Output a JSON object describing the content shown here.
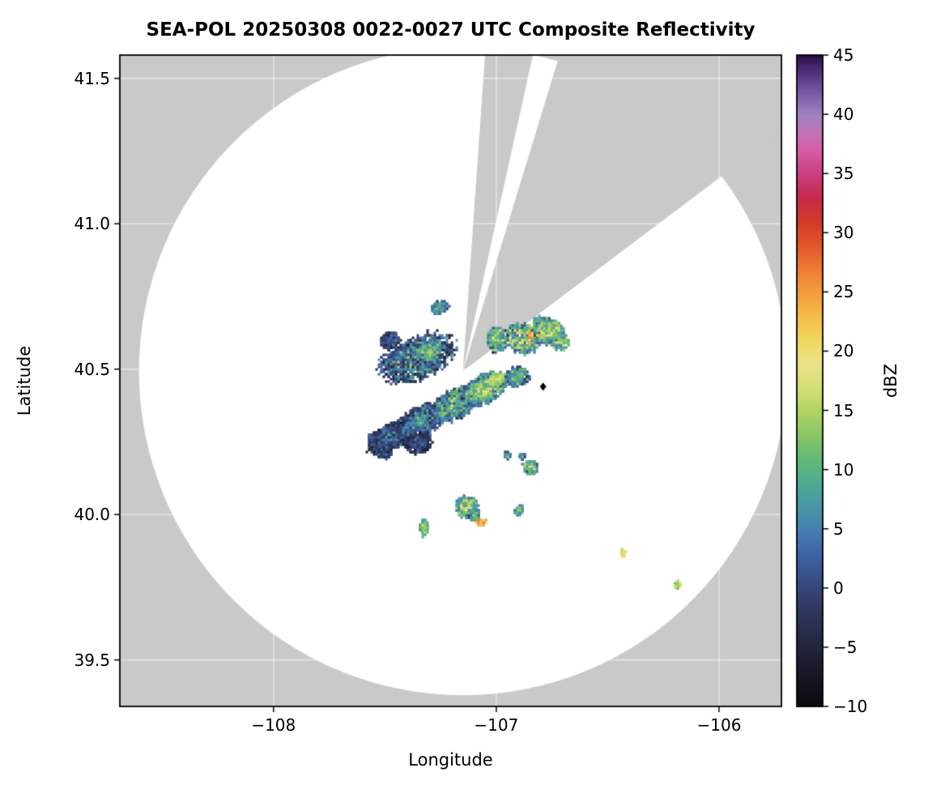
{
  "chart_data": {
    "type": "heatmap",
    "title": "SEA-POL 20250308 0022-0027 UTC Composite Reflectivity",
    "xlabel": "Longitude",
    "ylabel": "Latitude",
    "axes": {
      "xlim": [
        -108.69,
        -105.72
      ],
      "ylim": [
        39.34,
        41.58
      ],
      "xticks": [
        -108,
        -107,
        -106
      ],
      "xtick_labels": [
        "−108",
        "−107",
        "−106"
      ],
      "yticks": [
        39.5,
        40.0,
        40.5,
        41.0,
        41.5
      ],
      "ytick_labels": [
        "39.5",
        "40.0",
        "40.5",
        "41.0",
        "41.5"
      ],
      "grid": true
    },
    "colorbar": {
      "label": "dBZ",
      "min": -10,
      "max": 45,
      "ticks": [
        -10,
        -5,
        0,
        5,
        10,
        15,
        20,
        25,
        30,
        35,
        40,
        45
      ],
      "tick_labels": [
        "−10",
        "−5",
        "0",
        "5",
        "10",
        "15",
        "20",
        "25",
        "30",
        "35",
        "40",
        "45"
      ],
      "stops": [
        [
          -10,
          "#0a0a0c"
        ],
        [
          -7,
          "#191827"
        ],
        [
          -4,
          "#282a45"
        ],
        [
          -1,
          "#323d68"
        ],
        [
          1,
          "#39508a"
        ],
        [
          3,
          "#3f64a6"
        ],
        [
          5,
          "#4680b2"
        ],
        [
          7,
          "#4898a6"
        ],
        [
          9,
          "#4fac90"
        ],
        [
          11,
          "#64ba75"
        ],
        [
          13,
          "#8ac765"
        ],
        [
          15,
          "#b2d463"
        ],
        [
          17,
          "#d6e076"
        ],
        [
          19,
          "#ebe28a"
        ],
        [
          21,
          "#f2d75f"
        ],
        [
          23,
          "#f4bc4a"
        ],
        [
          25,
          "#f39d3d"
        ],
        [
          27,
          "#ee7b33"
        ],
        [
          29,
          "#e2562c"
        ],
        [
          31,
          "#d13a28"
        ],
        [
          33,
          "#c52a4e"
        ],
        [
          35,
          "#cb3f7f"
        ],
        [
          37,
          "#d45ea7"
        ],
        [
          38.5,
          "#c274b8"
        ],
        [
          40,
          "#9f82c2"
        ],
        [
          42,
          "#7257a4"
        ],
        [
          44,
          "#46276e"
        ],
        [
          45,
          "#2e0d45"
        ]
      ]
    },
    "radar": {
      "center_lon": -107.15,
      "center_lat": 40.493,
      "range_radius_deg_lat": 1.1145,
      "blocked_sectors_deg": [
        [
          4,
          12.5
        ],
        [
          17,
          53
        ]
      ]
    },
    "colors": {
      "masked": "#c9c9c9",
      "unmasked": "#ffffff",
      "frame": "#000000",
      "grid": "rgba(255,255,255,0.65)"
    },
    "marker": {
      "lon": -106.79,
      "lat": 40.44,
      "shape": "diamond",
      "color": "#000000"
    },
    "echoes": [
      {
        "lon": -107.48,
        "lat": 40.265,
        "rx": 0.1,
        "ry": 0.045,
        "rot": 22,
        "dbz": 3,
        "spread": 3.5,
        "edge": 6,
        "n": 800
      },
      {
        "lon": -107.34,
        "lat": 40.32,
        "rx": 0.11,
        "ry": 0.05,
        "rot": 20,
        "dbz": 6,
        "spread": 4.0,
        "edge": 7,
        "n": 850
      },
      {
        "lon": -107.19,
        "lat": 40.376,
        "rx": 0.11,
        "ry": 0.05,
        "rot": 20,
        "dbz": 10,
        "spread": 4.5,
        "edge": 8,
        "n": 850
      },
      {
        "lon": -107.05,
        "lat": 40.432,
        "rx": 0.1,
        "ry": 0.048,
        "rot": 18,
        "dbz": 14,
        "spread": 4.0,
        "edge": 9,
        "n": 800
      },
      {
        "lon": -106.905,
        "lat": 40.474,
        "rx": 0.055,
        "ry": 0.032,
        "rot": 12,
        "dbz": 11,
        "spread": 4.0,
        "edge": 8,
        "n": 320
      },
      {
        "lon": -107.0,
        "lat": 40.465,
        "rx": 0.035,
        "ry": 0.02,
        "rot": 15,
        "dbz": 17,
        "spread": 2.5,
        "edge": 4,
        "n": 160
      },
      {
        "lon": -107.35,
        "lat": 40.245,
        "rx": 0.06,
        "ry": 0.035,
        "rot": 10,
        "dbz": 1,
        "spread": 3.0,
        "edge": 5,
        "n": 300
      },
      {
        "lon": -107.5,
        "lat": 40.21,
        "rx": 0.03,
        "ry": 0.02,
        "rot": 0,
        "dbz": 1,
        "spread": 2.5,
        "edge": 4,
        "n": 90
      },
      {
        "lon": -107.56,
        "lat": 40.265,
        "rx": 0.018,
        "ry": 0.014,
        "rot": 0,
        "dbz": 2,
        "spread": 2.0,
        "edge": 3,
        "n": 45
      },
      {
        "lon": -106.95,
        "lat": 40.205,
        "rx": 0.014,
        "ry": 0.012,
        "rot": 0,
        "dbz": 8,
        "spread": 3.0,
        "edge": 3,
        "n": 30
      },
      {
        "lon": -106.88,
        "lat": 40.2,
        "rx": 0.012,
        "ry": 0.01,
        "rot": 0,
        "dbz": 6,
        "spread": 3.0,
        "edge": 3,
        "n": 25
      },
      {
        "lon": -107.356,
        "lat": 40.538,
        "rx": 0.17,
        "ry": 0.075,
        "rot": 15,
        "dbz": 6,
        "spread": 5.5,
        "edge": 9,
        "n": 1250
      },
      {
        "lon": -107.48,
        "lat": 40.6,
        "rx": 0.045,
        "ry": 0.028,
        "rot": 20,
        "dbz": 2,
        "spread": 3.0,
        "edge": 5,
        "n": 170
      },
      {
        "lon": -107.3,
        "lat": 40.565,
        "rx": 0.05,
        "ry": 0.03,
        "rot": 15,
        "dbz": 12,
        "spread": 3.5,
        "edge": 5,
        "n": 220
      },
      {
        "lon": -107.255,
        "lat": 40.71,
        "rx": 0.04,
        "ry": 0.022,
        "rot": 5,
        "dbz": 9,
        "spread": 3.5,
        "edge": 5,
        "n": 150
      },
      {
        "lon": -106.88,
        "lat": 40.605,
        "rx": 0.075,
        "ry": 0.05,
        "rot": -5,
        "dbz": 13,
        "spread": 5.0,
        "edge": 6,
        "n": 420
      },
      {
        "lon": -106.77,
        "lat": 40.63,
        "rx": 0.07,
        "ry": 0.042,
        "rot": 0,
        "dbz": 15,
        "spread": 5.0,
        "edge": 6,
        "n": 380
      },
      {
        "lon": -106.715,
        "lat": 40.595,
        "rx": 0.042,
        "ry": 0.03,
        "rot": 0,
        "dbz": 12,
        "spread": 4.0,
        "edge": 5,
        "n": 150
      },
      {
        "lon": -106.845,
        "lat": 40.615,
        "rx": 0.013,
        "ry": 0.01,
        "rot": 0,
        "dbz": 25,
        "spread": 2.5,
        "edge": 2,
        "n": 40
      },
      {
        "lon": -107.0,
        "lat": 40.6,
        "rx": 0.045,
        "ry": 0.04,
        "rot": 0,
        "dbz": 12,
        "spread": 4.5,
        "edge": 5,
        "n": 260
      },
      {
        "lon": -106.8,
        "lat": 40.66,
        "rx": 0.03,
        "ry": 0.02,
        "rot": 0,
        "dbz": 11,
        "spread": 4.0,
        "edge": 4,
        "n": 100
      },
      {
        "lon": -106.846,
        "lat": 40.162,
        "rx": 0.032,
        "ry": 0.024,
        "rot": 0,
        "dbz": 12,
        "spread": 4.0,
        "edge": 6,
        "n": 140
      },
      {
        "lon": -107.13,
        "lat": 40.025,
        "rx": 0.048,
        "ry": 0.036,
        "rot": 0,
        "dbz": 14,
        "spread": 4.0,
        "edge": 8,
        "n": 280
      },
      {
        "lon": -107.1,
        "lat": 39.998,
        "rx": 0.026,
        "ry": 0.02,
        "rot": 0,
        "dbz": 10,
        "spread": 3.5,
        "edge": 5,
        "n": 90
      },
      {
        "lon": -107.325,
        "lat": 39.955,
        "rx": 0.02,
        "ry": 0.028,
        "rot": 0,
        "dbz": 13,
        "spread": 3.0,
        "edge": 4,
        "n": 90
      },
      {
        "lon": -107.068,
        "lat": 39.973,
        "rx": 0.017,
        "ry": 0.013,
        "rot": 0,
        "dbz": 26,
        "spread": 3.0,
        "edge": 3,
        "n": 55
      },
      {
        "lon": -106.9,
        "lat": 40.015,
        "rx": 0.022,
        "ry": 0.016,
        "rot": 0,
        "dbz": 10,
        "spread": 3.0,
        "edge": 4,
        "n": 70
      },
      {
        "lon": -106.43,
        "lat": 39.868,
        "rx": 0.014,
        "ry": 0.012,
        "rot": 0,
        "dbz": 21,
        "spread": 3.0,
        "edge": 3,
        "n": 40
      },
      {
        "lon": -106.185,
        "lat": 39.757,
        "rx": 0.013,
        "ry": 0.011,
        "rot": 0,
        "dbz": 17,
        "spread": 2.5,
        "edge": 3,
        "n": 32
      }
    ]
  }
}
